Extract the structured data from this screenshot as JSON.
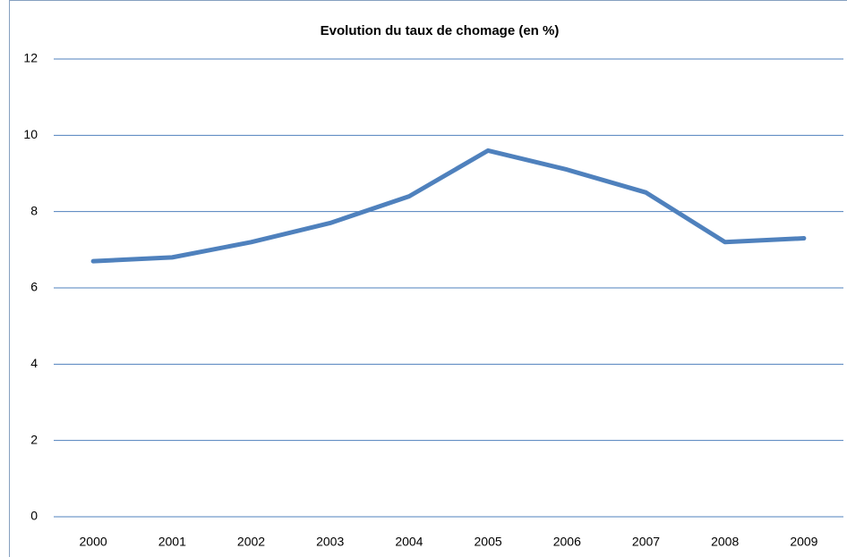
{
  "chart_data": {
    "type": "line",
    "title": "Evolution du taux de chomage (en %)",
    "categories": [
      "2000",
      "2001",
      "2002",
      "2003",
      "2004",
      "2005",
      "2006",
      "2007",
      "2008",
      "2009"
    ],
    "series": [
      {
        "name": "Taux de chomage",
        "color": "#4f81bd",
        "values": [
          6.7,
          6.8,
          7.2,
          7.7,
          8.4,
          9.6,
          9.1,
          8.5,
          7.2,
          7.3
        ]
      }
    ],
    "ylim": [
      0,
      12
    ],
    "yticks": [
      0,
      2,
      4,
      6,
      8,
      10,
      12
    ],
    "grid": true
  }
}
